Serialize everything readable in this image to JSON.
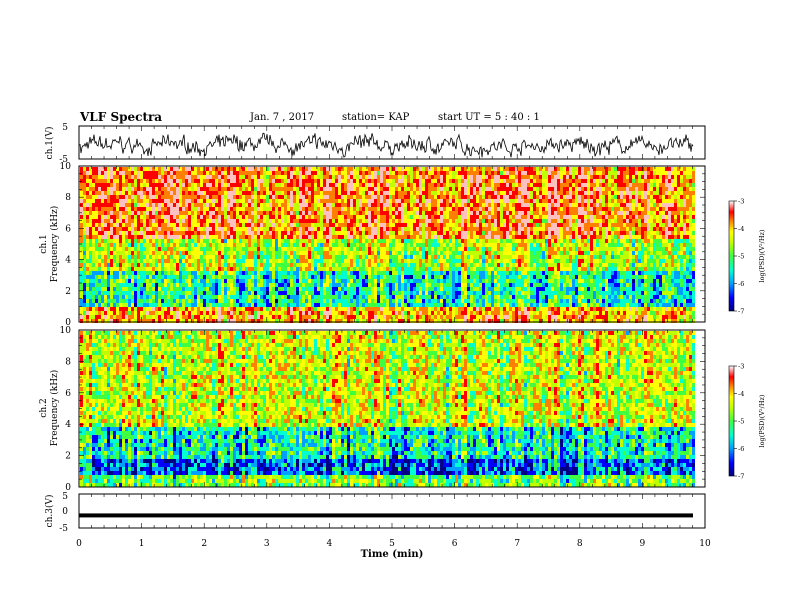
{
  "header": {
    "title": "VLF Spectra",
    "date": "Jan. 7 , 2017",
    "station": "station= KAP",
    "start": "start UT = 5 : 40 : 1"
  },
  "colors": {
    "spectrogram_scale": [
      "#000080",
      "#0000ff",
      "#00a0ff",
      "#00ffd0",
      "#40ff40",
      "#c0ff00",
      "#ffff00",
      "#ff8000",
      "#ff0000",
      "#ffc0c0",
      "#ffffff"
    ]
  },
  "chart_data": [
    {
      "type": "line",
      "panel": "ch1-waveform",
      "ylabel": "ch.1(V)",
      "ylim": [
        -5,
        5
      ],
      "yticks": [
        "5",
        "-5"
      ],
      "xlim": [
        0,
        10
      ],
      "description_series": "noisy waveform oscillating roughly between -4 and 2 V"
    },
    {
      "type": "heatmap",
      "panel": "ch1-spectrogram",
      "ylabel": "ch.1\nFrequency (kHz)",
      "ylim": [
        0,
        10
      ],
      "yticks": [
        "0",
        "2",
        "4",
        "6",
        "8",
        "10"
      ],
      "xlim": [
        0,
        10
      ],
      "colorbar": {
        "label": "log(PSD)(V²/Hz)",
        "ticks": [
          "-3",
          "-4",
          "-5",
          "-6",
          "-7"
        ],
        "range": [
          -7,
          -3
        ]
      },
      "bands": [
        {
          "from": 0,
          "to": 1,
          "level": -4.2
        },
        {
          "from": 1,
          "to": 3.5,
          "level": -5.6
        },
        {
          "from": 3.5,
          "to": 5.5,
          "level": -4.9
        },
        {
          "from": 5.5,
          "to": 10,
          "level": -4.0
        }
      ]
    },
    {
      "type": "heatmap",
      "panel": "ch2-spectrogram",
      "ylabel": "ch.2\nFrequency (kHz)",
      "ylim": [
        0,
        10
      ],
      "yticks": [
        "0",
        "2",
        "4",
        "6",
        "8",
        "10"
      ],
      "xlim": [
        0,
        10
      ],
      "colorbar": {
        "label": "log(PSD)(V²/Hz)",
        "ticks": [
          "-3",
          "-4",
          "-5",
          "-6",
          "-7"
        ],
        "range": [
          -7,
          -3
        ]
      },
      "bands": [
        {
          "from": 0,
          "to": 1,
          "level": -5.2
        },
        {
          "from": 1,
          "to": 2,
          "level": -6.3
        },
        {
          "from": 2,
          "to": 4,
          "level": -5.7
        },
        {
          "from": 4,
          "to": 10,
          "level": -4.8
        }
      ]
    },
    {
      "type": "line",
      "panel": "ch3-waveform",
      "ylabel": "ch.3(V)",
      "ylim": [
        -5,
        5
      ],
      "yticks": [
        "5",
        "0",
        "-5"
      ],
      "xlim": [
        0,
        10
      ],
      "xlabel": "Time (min)",
      "xticks": [
        "0",
        "1",
        "2",
        "3",
        "4",
        "5",
        "6",
        "7",
        "8",
        "9",
        "10"
      ],
      "constant_value": -1.3
    }
  ]
}
